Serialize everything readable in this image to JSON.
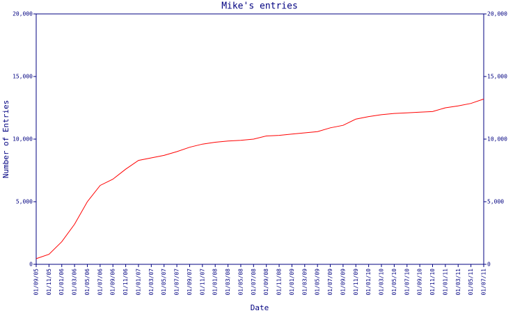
{
  "chart_data": {
    "type": "line",
    "title": "Mike's entries",
    "x_label": "Date",
    "y_label": "Number of Entries",
    "categories": [
      "01/09/05",
      "01/11/05",
      "01/01/06",
      "01/03/06",
      "01/05/06",
      "01/07/06",
      "01/09/06",
      "01/11/06",
      "01/01/07",
      "01/03/07",
      "01/05/07",
      "01/07/07",
      "01/09/07",
      "01/11/07",
      "01/01/08",
      "01/03/08",
      "01/05/08",
      "01/07/08",
      "01/09/08",
      "01/11/08",
      "01/01/09",
      "01/03/09",
      "01/05/09",
      "01/07/09",
      "01/09/09",
      "01/11/09",
      "01/01/10",
      "01/03/10",
      "01/05/10",
      "01/07/10",
      "01/09/10",
      "01/11/10",
      "01/01/11",
      "01/03/11",
      "01/05/11",
      "01/07/11"
    ],
    "series": [
      {
        "name": "Mike",
        "color": "#ff0000",
        "values": [
          450,
          800,
          1800,
          3200,
          5000,
          6300,
          6800,
          7600,
          8300,
          8500,
          8700,
          9000,
          9350,
          9600,
          9750,
          9850,
          9900,
          10000,
          10250,
          10300,
          10400,
          10500,
          10600,
          10900,
          11100,
          11600,
          11800,
          11950,
          12050,
          12100,
          12150,
          12200,
          12500,
          12650,
          12850,
          13200
        ]
      }
    ],
    "ylim": [
      0,
      20000
    ],
    "yticks": [
      0,
      {
        "value": 5000,
        "label": "5,000"
      },
      {
        "value": 10000,
        "label": "10,000"
      },
      {
        "value": 15000,
        "label": "15,000"
      },
      {
        "value": 20000,
        "label": "20,000"
      }
    ],
    "y2lim": [
      0,
      20000
    ],
    "y2ticks": [
      0,
      {
        "value": 5000,
        "label": "5,000"
      },
      {
        "value": 10000,
        "label": "10,000"
      },
      {
        "value": 15000,
        "label": "15,000"
      },
      {
        "value": 20000,
        "label": "20,000"
      }
    ],
    "axis_color": "#000080"
  }
}
